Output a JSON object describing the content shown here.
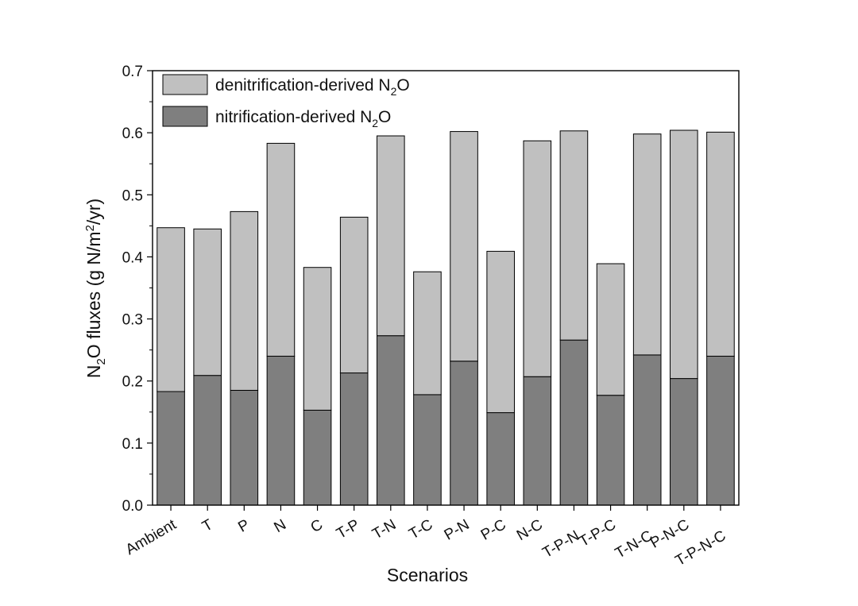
{
  "chart_data": {
    "type": "bar",
    "stacked": true,
    "title": "",
    "xlabel": "Scenarios",
    "ylabel": {
      "text": "N2O fluxes (g N/m2/yr)",
      "part1": "N",
      "sub": "2",
      "part2": "O fluxes (g N/m",
      "sup": "2",
      "part3": "/yr)"
    },
    "ylim": [
      0,
      0.7
    ],
    "yticks": [
      "0.0",
      "0.1",
      "0.2",
      "0.3",
      "0.4",
      "0.5",
      "0.6",
      "0.7"
    ],
    "grid": false,
    "legend_position": "top-left",
    "categories": [
      "Ambient",
      "T",
      "P",
      "N",
      "C",
      "T-P",
      "T-N",
      "T-C",
      "P-N",
      "P-C",
      "N-C",
      "T-P-N",
      "T-P-C",
      "T-N-C",
      "P-N-C",
      "T-P-N-C"
    ],
    "series": [
      {
        "name": "nitrification-derived N2O",
        "label_main": "nitrification-derived N",
        "label_sub": "2",
        "label_tail": "O",
        "color": "#7f7f7f",
        "values": [
          0.183,
          0.209,
          0.185,
          0.24,
          0.153,
          0.213,
          0.273,
          0.178,
          0.232,
          0.149,
          0.207,
          0.266,
          0.177,
          0.242,
          0.204,
          0.24
        ]
      },
      {
        "name": "denitrification-derived N2O",
        "label_main": "denitrification-derived N",
        "label_sub": "2",
        "label_tail": "O",
        "color": "#c0c0c0",
        "values": [
          0.264,
          0.236,
          0.288,
          0.343,
          0.23,
          0.251,
          0.322,
          0.198,
          0.37,
          0.26,
          0.38,
          0.337,
          0.212,
          0.356,
          0.4,
          0.361
        ]
      }
    ]
  }
}
